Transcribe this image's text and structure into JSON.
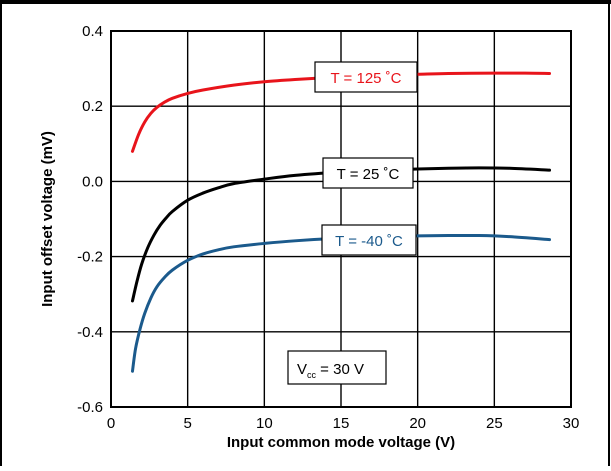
{
  "chart_data": {
    "type": "line",
    "xlabel": "Input common mode voltage (V)",
    "ylabel": "Input offset voltage (mV)",
    "xlim": [
      0,
      30
    ],
    "ylim": [
      -0.6,
      0.4
    ],
    "xticks": [
      0,
      5,
      10,
      15,
      20,
      25,
      30
    ],
    "yticks": [
      0.4,
      0.2,
      0.0,
      -0.2,
      -0.4,
      -0.6
    ],
    "x_tick_labels": [
      "0",
      "5",
      "10",
      "15",
      "20",
      "25",
      "30"
    ],
    "y_tick_labels": [
      "0.4",
      "0.2",
      "0.0",
      "-0.2",
      "-0.4",
      "-0.6"
    ],
    "grid": true,
    "series": [
      {
        "name": "T = 125 ˚C",
        "color": "#e8141b",
        "x": [
          1.4,
          1.8,
          2.2,
          2.6,
          3.0,
          3.5,
          4.0,
          5.0,
          6.0,
          8.0,
          10.0,
          12.0,
          15.0,
          18.0,
          20.0,
          22.0,
          25.0,
          27.0,
          28.6
        ],
        "y": [
          0.08,
          0.125,
          0.158,
          0.181,
          0.197,
          0.211,
          0.221,
          0.234,
          0.243,
          0.256,
          0.265,
          0.271,
          0.278,
          0.283,
          0.285,
          0.287,
          0.288,
          0.288,
          0.287
        ]
      },
      {
        "name": "T = 25 ˚C",
        "color": "#000000",
        "x": [
          1.4,
          1.7,
          2.0,
          2.4,
          2.8,
          3.2,
          3.6,
          4.0,
          5.0,
          6.0,
          7.0,
          8.0,
          10.0,
          12.0,
          15.0,
          18.0,
          20.0,
          22.0,
          24.0,
          26.0,
          28.6
        ],
        "y": [
          -0.318,
          -0.265,
          -0.22,
          -0.176,
          -0.143,
          -0.117,
          -0.097,
          -0.08,
          -0.05,
          -0.031,
          -0.017,
          -0.006,
          0.006,
          0.016,
          0.025,
          0.031,
          0.033,
          0.035,
          0.036,
          0.035,
          0.03
        ]
      },
      {
        "name": "T = -40 ˚C",
        "color": "#1b5a8c",
        "x": [
          1.4,
          1.6,
          1.9,
          2.2,
          2.6,
          3.0,
          3.5,
          4.0,
          5.0,
          6.0,
          7.0,
          8.0,
          10.0,
          12.0,
          15.0,
          18.0,
          20.0,
          22.0,
          24.0,
          26.0,
          28.6
        ],
        "y": [
          -0.505,
          -0.445,
          -0.392,
          -0.351,
          -0.31,
          -0.28,
          -0.255,
          -0.236,
          -0.21,
          -0.193,
          -0.182,
          -0.174,
          -0.165,
          -0.158,
          -0.151,
          -0.147,
          -0.145,
          -0.144,
          -0.144,
          -0.147,
          -0.155
        ]
      }
    ],
    "annotations": {
      "vcc_main": "V",
      "vcc_sub": "cc",
      "vcc_rest": " = 30 V"
    }
  }
}
